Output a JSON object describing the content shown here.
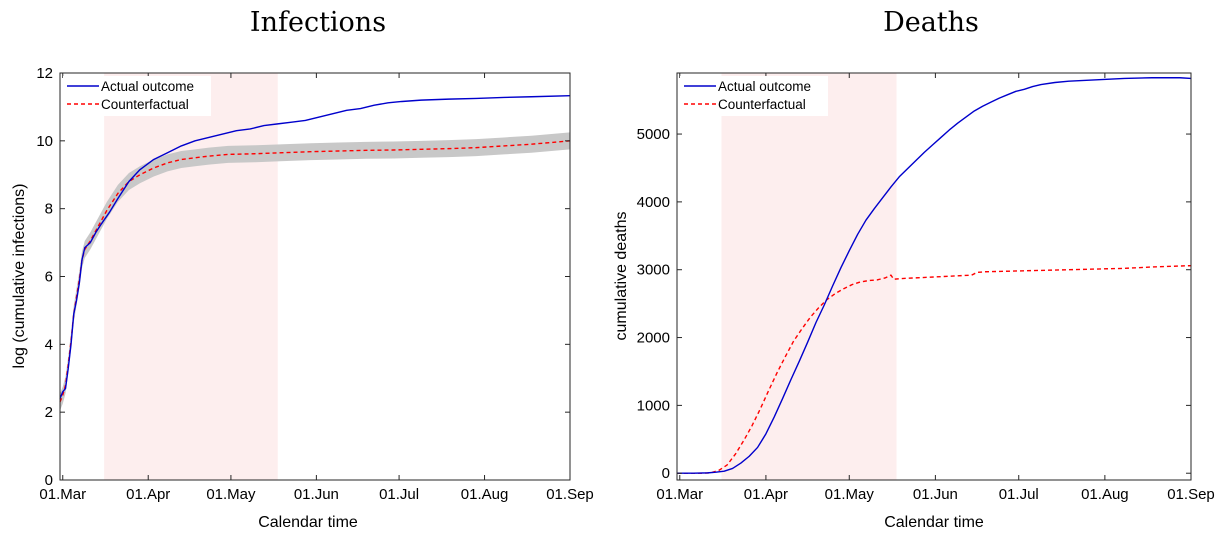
{
  "chart_data": [
    {
      "type": "line",
      "title": "Infections",
      "xlabel": "Calendar time",
      "ylabel": "log (cumulative infections)",
      "x_ticks": [
        "01.Mar",
        "01.Apr",
        "01.May",
        "01.Jun",
        "01.Jul",
        "01.Aug",
        "01.Sep"
      ],
      "x_tick_days": [
        0,
        31,
        61,
        92,
        122,
        153,
        184
      ],
      "xlim_days": [
        -1,
        184
      ],
      "y_ticks": [
        "0",
        "2",
        "4",
        "6",
        "8",
        "10",
        "12"
      ],
      "y_tick_values": [
        0,
        2,
        4,
        6,
        8,
        10,
        12
      ],
      "ylim": [
        0,
        12
      ],
      "shaded_region_days": [
        15,
        78
      ],
      "shaded_region_color": "#fdeeee",
      "legend_position": "top-left",
      "series": [
        {
          "name": "Actual outcome",
          "color": "#0000cc",
          "style": "solid",
          "points": [
            [
              -1,
              2.4
            ],
            [
              0,
              2.6
            ],
            [
              1,
              2.7
            ],
            [
              2,
              3.3
            ],
            [
              3,
              4.0
            ],
            [
              4,
              4.9
            ],
            [
              5,
              5.3
            ],
            [
              6,
              5.8
            ],
            [
              7,
              6.5
            ],
            [
              8,
              6.85
            ],
            [
              10,
              7.0
            ],
            [
              12,
              7.3
            ],
            [
              14,
              7.55
            ],
            [
              17,
              7.9
            ],
            [
              20,
              8.3
            ],
            [
              24,
              8.8
            ],
            [
              28,
              9.15
            ],
            [
              33,
              9.45
            ],
            [
              38,
              9.65
            ],
            [
              43,
              9.85
            ],
            [
              48,
              10.0
            ],
            [
              53,
              10.1
            ],
            [
              58,
              10.2
            ],
            [
              63,
              10.3
            ],
            [
              68,
              10.35
            ],
            [
              73,
              10.45
            ],
            [
              78,
              10.5
            ],
            [
              83,
              10.55
            ],
            [
              88,
              10.6
            ],
            [
              93,
              10.7
            ],
            [
              98,
              10.8
            ],
            [
              103,
              10.9
            ],
            [
              108,
              10.95
            ],
            [
              113,
              11.05
            ],
            [
              118,
              11.12
            ],
            [
              123,
              11.16
            ],
            [
              130,
              11.2
            ],
            [
              140,
              11.23
            ],
            [
              150,
              11.25
            ],
            [
              160,
              11.28
            ],
            [
              170,
              11.3
            ],
            [
              184,
              11.33
            ]
          ]
        },
        {
          "name": "Counterfactual",
          "color": "#ff0000",
          "style": "dashed",
          "points": [
            [
              -1,
              2.3
            ],
            [
              0,
              2.5
            ],
            [
              1,
              2.8
            ],
            [
              2,
              3.4
            ],
            [
              3,
              4.1
            ],
            [
              4,
              4.9
            ],
            [
              5,
              5.4
            ],
            [
              6,
              5.9
            ],
            [
              7,
              6.5
            ],
            [
              8,
              6.8
            ],
            [
              10,
              7.05
            ],
            [
              13,
              7.5
            ],
            [
              16,
              7.95
            ],
            [
              20,
              8.45
            ],
            [
              24,
              8.8
            ],
            [
              28,
              9.0
            ],
            [
              33,
              9.2
            ],
            [
              38,
              9.35
            ],
            [
              43,
              9.45
            ],
            [
              48,
              9.5
            ],
            [
              53,
              9.55
            ],
            [
              60,
              9.6
            ],
            [
              70,
              9.62
            ],
            [
              80,
              9.65
            ],
            [
              90,
              9.68
            ],
            [
              100,
              9.7
            ],
            [
              110,
              9.72
            ],
            [
              120,
              9.73
            ],
            [
              130,
              9.75
            ],
            [
              140,
              9.77
            ],
            [
              150,
              9.8
            ],
            [
              160,
              9.85
            ],
            [
              170,
              9.9
            ],
            [
              184,
              10.0
            ]
          ]
        }
      ],
      "band": {
        "name": "uncertainty band",
        "color": "#c8c8c8",
        "half_width": 0.25
      }
    },
    {
      "type": "line",
      "title": "Deaths",
      "xlabel": "Calendar time",
      "ylabel": "cumulative deaths",
      "x_ticks": [
        "01.Mar",
        "01.Apr",
        "01.May",
        "01.Jun",
        "01.Jul",
        "01.Aug",
        "01.Sep"
      ],
      "x_tick_days": [
        0,
        31,
        61,
        92,
        122,
        153,
        184
      ],
      "xlim_days": [
        -1,
        184
      ],
      "y_ticks": [
        "0",
        "1000",
        "2000",
        "3000",
        "4000",
        "5000"
      ],
      "y_tick_values": [
        0,
        1000,
        2000,
        3000,
        4000,
        5000
      ],
      "ylim": [
        -100,
        5900
      ],
      "shaded_region_days": [
        15,
        78
      ],
      "shaded_region_color": "#fdeeee",
      "legend_position": "top-left",
      "series": [
        {
          "name": "Actual outcome",
          "color": "#0000cc",
          "style": "solid",
          "points": [
            [
              -1,
              0
            ],
            [
              5,
              0
            ],
            [
              10,
              5
            ],
            [
              13,
              15
            ],
            [
              16,
              30
            ],
            [
              19,
              70
            ],
            [
              22,
              150
            ],
            [
              25,
              250
            ],
            [
              28,
              380
            ],
            [
              31,
              580
            ],
            [
              34,
              830
            ],
            [
              37,
              1100
            ],
            [
              40,
              1380
            ],
            [
              43,
              1650
            ],
            [
              46,
              1930
            ],
            [
              49,
              2220
            ],
            [
              52,
              2480
            ],
            [
              55,
              2760
            ],
            [
              58,
              3030
            ],
            [
              61,
              3280
            ],
            [
              64,
              3520
            ],
            [
              67,
              3730
            ],
            [
              70,
              3900
            ],
            [
              73,
              4060
            ],
            [
              76,
              4220
            ],
            [
              79,
              4370
            ],
            [
              82,
              4490
            ],
            [
              85,
              4610
            ],
            [
              88,
              4730
            ],
            [
              91,
              4840
            ],
            [
              94,
              4950
            ],
            [
              97,
              5060
            ],
            [
              100,
              5160
            ],
            [
              103,
              5250
            ],
            [
              106,
              5340
            ],
            [
              109,
              5410
            ],
            [
              112,
              5470
            ],
            [
              115,
              5530
            ],
            [
              118,
              5580
            ],
            [
              121,
              5630
            ],
            [
              124,
              5660
            ],
            [
              127,
              5700
            ],
            [
              130,
              5730
            ],
            [
              135,
              5760
            ],
            [
              140,
              5780
            ],
            [
              150,
              5800
            ],
            [
              160,
              5820
            ],
            [
              170,
              5830
            ],
            [
              180,
              5830
            ],
            [
              184,
              5820
            ]
          ]
        },
        {
          "name": "Counterfactual",
          "color": "#ff0000",
          "style": "dashed",
          "points": [
            [
              -1,
              0
            ],
            [
              8,
              0
            ],
            [
              11,
              5
            ],
            [
              14,
              40
            ],
            [
              17,
              120
            ],
            [
              20,
              280
            ],
            [
              23,
              480
            ],
            [
              26,
              700
            ],
            [
              29,
              950
            ],
            [
              32,
              1220
            ],
            [
              35,
              1480
            ],
            [
              38,
              1720
            ],
            [
              41,
              1950
            ],
            [
              44,
              2130
            ],
            [
              47,
              2300
            ],
            [
              50,
              2440
            ],
            [
              53,
              2560
            ],
            [
              56,
              2650
            ],
            [
              59,
              2720
            ],
            [
              62,
              2780
            ],
            [
              65,
              2820
            ],
            [
              68,
              2840
            ],
            [
              71,
              2850
            ],
            [
              74,
              2880
            ],
            [
              76,
              2920
            ],
            [
              77,
              2860
            ],
            [
              80,
              2870
            ],
            [
              90,
              2890
            ],
            [
              100,
              2910
            ],
            [
              105,
              2920
            ],
            [
              107,
              2960
            ],
            [
              110,
              2970
            ],
            [
              120,
              2980
            ],
            [
              130,
              2990
            ],
            [
              140,
              3000
            ],
            [
              150,
              3010
            ],
            [
              160,
              3020
            ],
            [
              170,
              3040
            ],
            [
              184,
              3060
            ]
          ]
        }
      ]
    }
  ]
}
